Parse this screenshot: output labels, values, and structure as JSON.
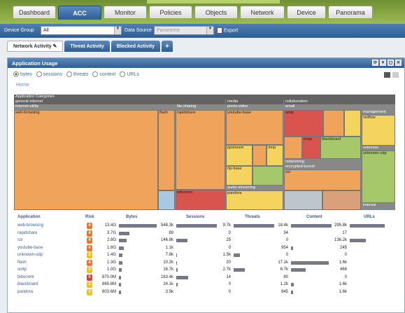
{
  "main_tabs": [
    "Dashboard",
    "ACC",
    "Monitor",
    "Policies",
    "Objects",
    "Network",
    "Device",
    "Panorama"
  ],
  "filter": {
    "device_group_label": "Device Group",
    "device_group_value": "All",
    "data_source_label": "Data Source",
    "data_source_value": "Panorama",
    "export_label": "Export"
  },
  "sub_tabs": [
    "Network Activity",
    "Threat Activity",
    "Blocked Activity",
    "+"
  ],
  "panel": {
    "title": "Application Usage",
    "home": "Home"
  },
  "radios": [
    "bytes",
    "sessions",
    "threats",
    "content",
    "URLs"
  ],
  "treemap": {
    "root": "Application Categories",
    "categories": [
      "general-internet",
      "media",
      "collaboration",
      "networking"
    ],
    "subcategories": [
      "internet-utility",
      "file-sharing",
      "photo-video",
      "email",
      "encrypted-tunnel",
      "audio-streaming",
      "management",
      "unknown",
      "internal"
    ],
    "apps": [
      "web-browsing",
      "flash",
      "rapidshare",
      "youtube-base",
      "ppstream",
      "rtmp",
      "rtp-base",
      "smtp",
      "imap",
      "blackboard",
      "netflow",
      "unknown-udp",
      "ssl",
      "bittorrent",
      "pandora"
    ]
  },
  "colors": {
    "orange": "#f0a35a",
    "red": "#d9534f",
    "yellow": "#f4d35e",
    "green": "#a6c86b",
    "grey": "#bcc6cc",
    "blue": "#6f9bc7"
  },
  "table": {
    "headers": [
      "Application",
      "Risk",
      "Bytes",
      "Sessions",
      "Threats",
      "Content",
      "URLs"
    ],
    "rows": [
      {
        "app": "web-browsing",
        "risk": "4",
        "bytes": "13.4G",
        "sessions": "548.3k",
        "threats": "9.7k",
        "content": "18.4k",
        "urls": "295.8k",
        "bars": [
          1,
          1,
          1,
          1,
          1
        ]
      },
      {
        "app": "rapidshare",
        "risk": "4",
        "bytes": "3.7G",
        "sessions": "89",
        "threats": "0",
        "content": "34",
        "urls": "17",
        "bars": [
          0.27,
          0,
          0,
          0,
          0
        ]
      },
      {
        "app": "ssl",
        "risk": "4",
        "bytes": "2.8G",
        "sessions": "146.8k",
        "threats": "25",
        "content": "0",
        "urls": "136.2k",
        "bars": [
          0.2,
          0.27,
          0,
          0,
          0.46
        ]
      },
      {
        "app": "youtube-base",
        "risk": "4",
        "bytes": "1.8G",
        "sessions": "1.1k",
        "threats": "0",
        "content": "954",
        "urls": "245",
        "bars": [
          0.13,
          0,
          0,
          0.05,
          0
        ]
      },
      {
        "app": "unknown-udp",
        "risk": "3",
        "bytes": "1.4G",
        "sessions": "7.8k",
        "threats": "1.5k",
        "content": "0",
        "urls": "0",
        "bars": [
          0.1,
          0.01,
          0.15,
          0,
          0
        ]
      },
      {
        "app": "flash",
        "risk": "4",
        "bytes": "1.3G",
        "sessions": "10.2k",
        "threats": "20",
        "content": "17.1k",
        "urls": "1.6k",
        "bars": [
          0.1,
          0.02,
          0,
          0.93,
          0
        ]
      },
      {
        "app": "smtp",
        "risk": "3",
        "bytes": "1.0G",
        "sessions": "16.7k",
        "threats": "2.7k",
        "content": "6.7k",
        "urls": "466",
        "bars": [
          0.07,
          0.03,
          0.28,
          0.36,
          0
        ]
      },
      {
        "app": "bittorrent",
        "risk": "5",
        "bytes": "870.0M",
        "sessions": "163.4k",
        "threats": "14",
        "content": "80",
        "urls": "0",
        "bars": [
          0.06,
          0.3,
          0,
          0,
          0
        ]
      },
      {
        "app": "blackboard",
        "risk": "3",
        "bytes": "869.8M",
        "sessions": "24.1k",
        "threats": "0",
        "content": "1.2k",
        "urls": "1.6k",
        "bars": [
          0.06,
          0.04,
          0,
          0.07,
          0
        ]
      },
      {
        "app": "pandora",
        "risk": "3",
        "bytes": "803.6M",
        "sessions": "3.5k",
        "threats": "0",
        "content": "845",
        "urls": "1.6k",
        "bars": [
          0.06,
          0,
          0,
          0.05,
          0
        ]
      }
    ],
    "risk_colors": {
      "3": "#f0c020",
      "4": "#e8762c",
      "5": "#d24040"
    }
  }
}
